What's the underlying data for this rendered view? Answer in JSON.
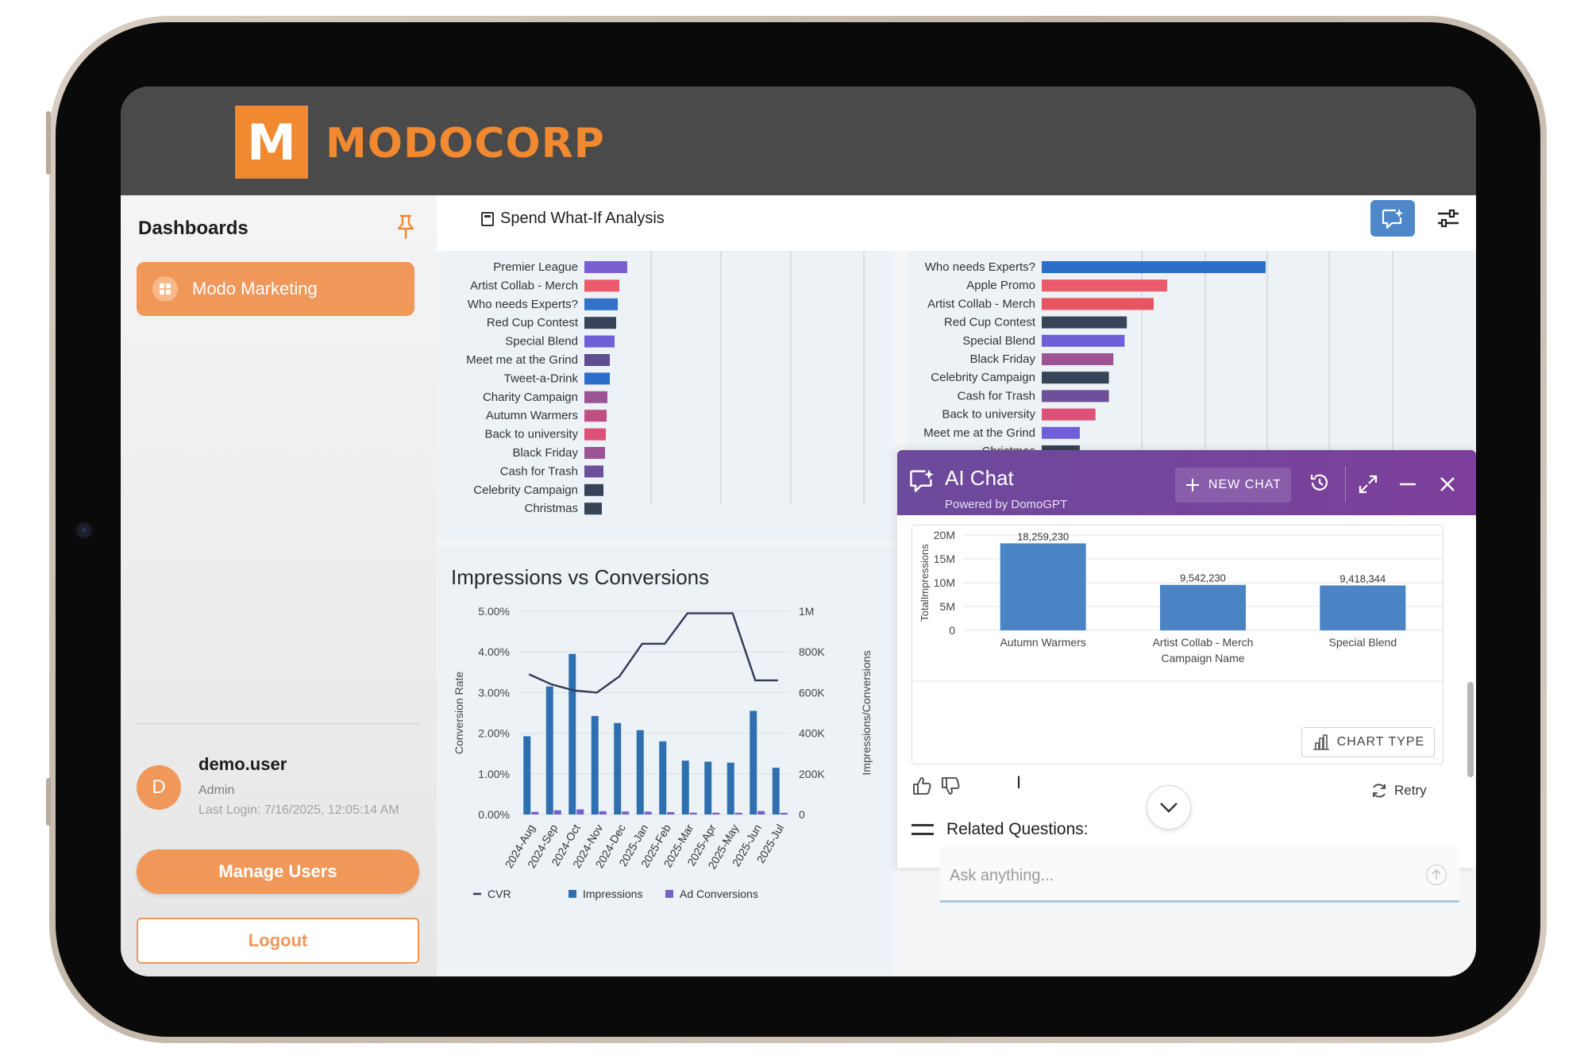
{
  "brand": {
    "logo_letter": "M",
    "name": "MODOCORP",
    "accent": "#f0892f"
  },
  "sidebar": {
    "title": "Dashboards",
    "items": [
      {
        "label": "Modo Marketing"
      }
    ],
    "user": {
      "initial": "D",
      "name": "demo.user",
      "role": "Admin",
      "last_login": "Last Login: 7/16/2025, 12:05:14 AM"
    },
    "manage_users_label": "Manage Users",
    "logout_label": "Logout"
  },
  "page": {
    "title": "Spend What-If Analysis"
  },
  "left_bar_labels": [
    "Premier League",
    "Artist Collab - Merch",
    "Who needs Experts?",
    "Red Cup Contest",
    "Special Blend",
    "Meet me at the Grind",
    "Tweet-a-Drink",
    "Charity Campaign",
    "Autumn Warmers",
    "Back to university",
    "Black Friday",
    "Cash for Trash",
    "Celebrity Campaign",
    "Christmas"
  ],
  "right_bar_labels": [
    "Who needs Experts?",
    "Apple Promo",
    "Artist Collab - Merch",
    "Red Cup Contest",
    "Special Blend",
    "Black Friday",
    "Celebrity Campaign",
    "Cash for Trash",
    "Back to university",
    "Meet me at the Grind",
    "Christmas"
  ],
  "chart_data": [
    {
      "type": "bar",
      "orientation": "horizontal",
      "categories": [
        "Premier League",
        "Artist Collab - Merch",
        "Who needs Experts?",
        "Red Cup Contest",
        "Special Blend",
        "Meet me at the Grind",
        "Tweet-a-Drink",
        "Charity Campaign",
        "Autumn Warmers",
        "Back to university",
        "Black Friday",
        "Cash for Trash",
        "Celebrity Campaign",
        "Christmas"
      ],
      "values": [
        54,
        44,
        42,
        40,
        38,
        32,
        32,
        29,
        28,
        27,
        26,
        24,
        24,
        22
      ],
      "colors": [
        "#7a5fd0",
        "#ea5a6a",
        "#3272c9",
        "#374356",
        "#6f5fd8",
        "#5f4d90",
        "#2c6fc8",
        "#9d5494",
        "#c24f82",
        "#dd5077",
        "#9d5494",
        "#6d4f9a",
        "#374356",
        "#374356"
      ]
    },
    {
      "type": "bar",
      "orientation": "horizontal",
      "categories": [
        "Who needs Experts?",
        "Apple Promo",
        "Artist Collab - Merch",
        "Red Cup Contest",
        "Special Blend",
        "Black Friday",
        "Celebrity Campaign",
        "Cash for Trash",
        "Back to university",
        "Meet me at the Grind",
        "Christmas"
      ],
      "values": [
        100,
        56,
        50,
        38,
        37,
        32,
        30,
        30,
        24,
        17,
        17
      ],
      "colors": [
        "#2c6fc8",
        "#ea5a6a",
        "#e85560",
        "#374356",
        "#6f5fd8",
        "#9d5494",
        "#374356",
        "#6d4f9a",
        "#dd5077",
        "#6f5fd8",
        "#374356"
      ]
    },
    {
      "type": "bar+line",
      "title": "Impressions vs Conversions",
      "x": [
        "2024-Aug",
        "2024-Sep",
        "2024-Oct",
        "2024-Nov",
        "2024-Dec",
        "2025-Jan",
        "2025-Feb",
        "2025-Mar",
        "2025-Apr",
        "2025-May",
        "2025-Jun",
        "2025-Jul"
      ],
      "series": [
        {
          "name": "CVR",
          "kind": "line",
          "axis": "left",
          "color": "#2f3a55",
          "values": [
            3.45,
            3.2,
            3.05,
            3.0,
            3.4,
            4.2,
            4.2,
            4.95,
            4.95,
            4.95,
            3.3,
            3.3
          ]
        },
        {
          "name": "Impressions",
          "kind": "bar",
          "axis": "right",
          "color": "#2e6fb0",
          "values": [
            385000,
            630000,
            790000,
            485000,
            450000,
            415000,
            360000,
            265000,
            260000,
            255000,
            510000,
            230000
          ]
        },
        {
          "name": "Ad Conversions",
          "kind": "bar",
          "axis": "right",
          "color": "#7462c9",
          "values": [
            13000,
            21000,
            25000,
            16000,
            15000,
            14000,
            12000,
            9000,
            9000,
            8500,
            17000,
            8000
          ]
        }
      ],
      "yleft": {
        "label": "Conversion Rate",
        "ticks": [
          "0.00%",
          "1.00%",
          "2.00%",
          "3.00%",
          "4.00%",
          "5.00%"
        ],
        "range": [
          0,
          5
        ]
      },
      "yright": {
        "label": "Impressions/Conversions",
        "ticks": [
          "0",
          "200K",
          "400K",
          "600K",
          "800K",
          "1M"
        ],
        "range": [
          0,
          1000000
        ]
      },
      "legend": [
        "CVR",
        "Impressions",
        "Ad Conversions"
      ],
      "legend_position": "bottom"
    },
    {
      "type": "bar",
      "categories": [
        "Autumn Warmers",
        "Artist Collab - Merch",
        "Special Blend"
      ],
      "values": [
        18259230,
        9542230,
        9418344
      ],
      "data_labels": [
        "18,259,230",
        "9,542,230",
        "9,418,344"
      ],
      "xlabel": "Campaign Name",
      "ylabel": "TotalImpressions",
      "yticks": [
        "0",
        "5M",
        "10M",
        "15M",
        "20M"
      ],
      "ylim": [
        0,
        20000000
      ],
      "color": "#4a84c4"
    }
  ],
  "chat": {
    "title": "AI Chat",
    "subtitle": "Powered by DomoGPT",
    "new_chat_label": "NEW CHAT",
    "chart_type_label": "CHART TYPE",
    "retry_label": "Retry",
    "related_label": "Related Questions:",
    "input_placeholder": "Ask anything...",
    "header_color": "#6c4a9c"
  }
}
